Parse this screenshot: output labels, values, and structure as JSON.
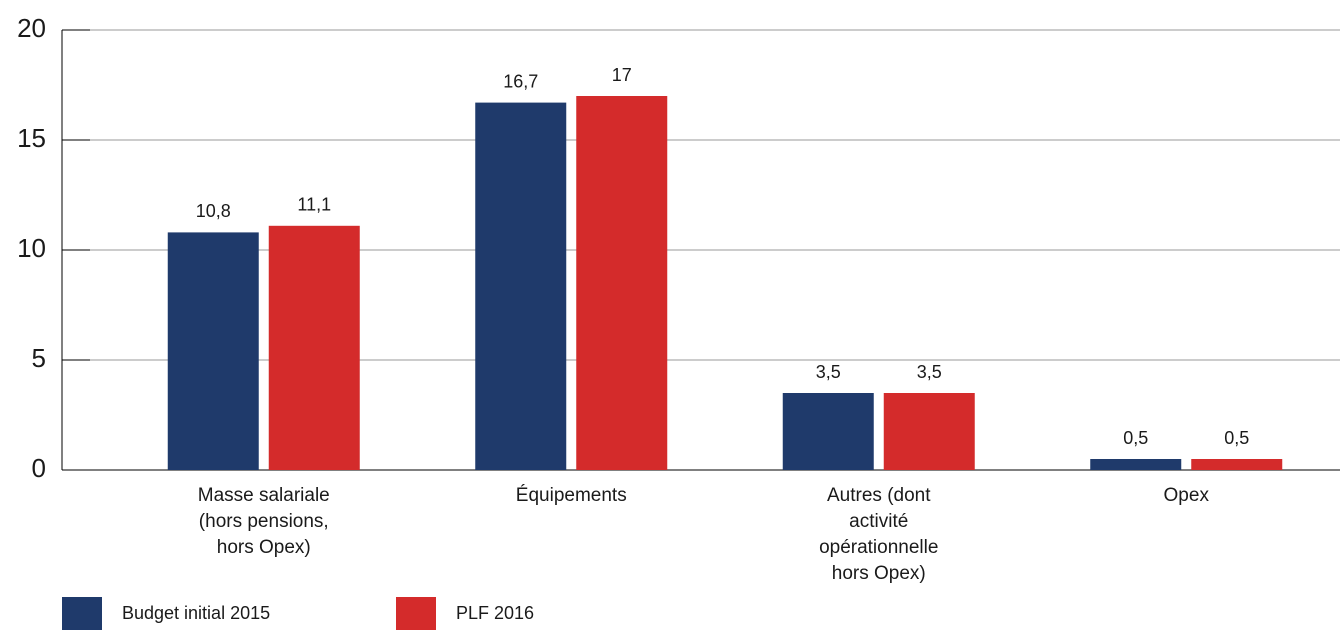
{
  "chart_data": {
    "type": "bar",
    "categories": [
      [
        "Masse salariale",
        "(hors pensions,",
        "hors Opex)"
      ],
      [
        "Équipements"
      ],
      [
        "Autres (dont",
        "activité",
        "opérationnelle",
        "hors Opex)"
      ],
      [
        "Opex"
      ]
    ],
    "series": [
      {
        "name": "Budget initial 2015",
        "color": "#1f3a6b",
        "values": [
          10.8,
          16.7,
          3.5,
          0.5
        ],
        "value_labels": [
          "10,8",
          "16,7",
          "3,5",
          "0,5"
        ]
      },
      {
        "name": "PLF 2016",
        "color": "#d42b2b",
        "values": [
          11.1,
          17,
          3.5,
          0.5
        ],
        "value_labels": [
          "11,1",
          "17",
          "3,5",
          "0,5"
        ]
      }
    ],
    "ylim": [
      0,
      20
    ],
    "yticks": [
      0,
      5,
      10,
      15,
      20
    ],
    "grid": true,
    "legend": "bottom-left"
  }
}
